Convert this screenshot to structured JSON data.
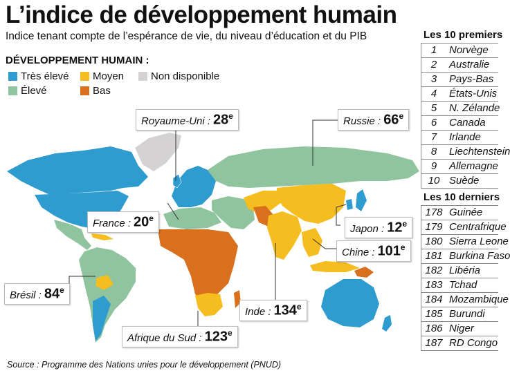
{
  "title": "L’indice de développement humain",
  "subtitle": "Indice tenant compte de l’espérance de vie, du niveau d’éducation et du PIB",
  "legend": {
    "title": "DÉVELOPPEMENT HUMAIN :",
    "items": [
      {
        "label": "Très élevé",
        "color": "#2f9ccf"
      },
      {
        "label": "Élevé",
        "color": "#8fc49e"
      },
      {
        "label": "Moyen",
        "color": "#f5bd1f"
      },
      {
        "label": "Bas",
        "color": "#d9701e"
      },
      {
        "label": "Non disponible",
        "color": "#d4d2d2"
      }
    ]
  },
  "callouts": [
    {
      "country": "Royaume-Uni :",
      "rank": "28",
      "sup": "e"
    },
    {
      "country": "Russie :",
      "rank": "66",
      "sup": "e"
    },
    {
      "country": "France :",
      "rank": "20",
      "sup": "e"
    },
    {
      "country": "Japon :",
      "rank": "12",
      "sup": "e"
    },
    {
      "country": "Chine :",
      "rank": "101",
      "sup": "e"
    },
    {
      "country": "Brésil :",
      "rank": "84",
      "sup": "e"
    },
    {
      "country": "Inde :",
      "rank": "134",
      "sup": "e"
    },
    {
      "country": "Afrique du Sud :",
      "rank": "123",
      "sup": "e"
    }
  ],
  "top10": {
    "title": "Les 10 premiers",
    "rows": [
      {
        "n": "1",
        "c": "Norvège"
      },
      {
        "n": "2",
        "c": "Australie"
      },
      {
        "n": "3",
        "c": "Pays-Bas"
      },
      {
        "n": "4",
        "c": "États-Unis"
      },
      {
        "n": "5",
        "c": "N. Zélande"
      },
      {
        "n": "6",
        "c": "Canada"
      },
      {
        "n": "7",
        "c": "Irlande"
      },
      {
        "n": "8",
        "c": "Liechtenstein"
      },
      {
        "n": "9",
        "c": "Allemagne"
      },
      {
        "n": "10",
        "c": "Suède"
      }
    ]
  },
  "bottom10": {
    "title": "Les 10 derniers",
    "rows": [
      {
        "n": "178",
        "c": "Guinée"
      },
      {
        "n": "179",
        "c": "Centrafrique"
      },
      {
        "n": "180",
        "c": "Sierra Leone"
      },
      {
        "n": "181",
        "c": "Burkina Faso"
      },
      {
        "n": "182",
        "c": "Libéria"
      },
      {
        "n": "183",
        "c": "Tchad"
      },
      {
        "n": "184",
        "c": "Mozambique"
      },
      {
        "n": "185",
        "c": "Burundi"
      },
      {
        "n": "186",
        "c": "Niger"
      },
      {
        "n": "187",
        "c": "RD Congo"
      }
    ]
  },
  "source": "Source : Programme des Nations unies pour le développement (PNUD)"
}
